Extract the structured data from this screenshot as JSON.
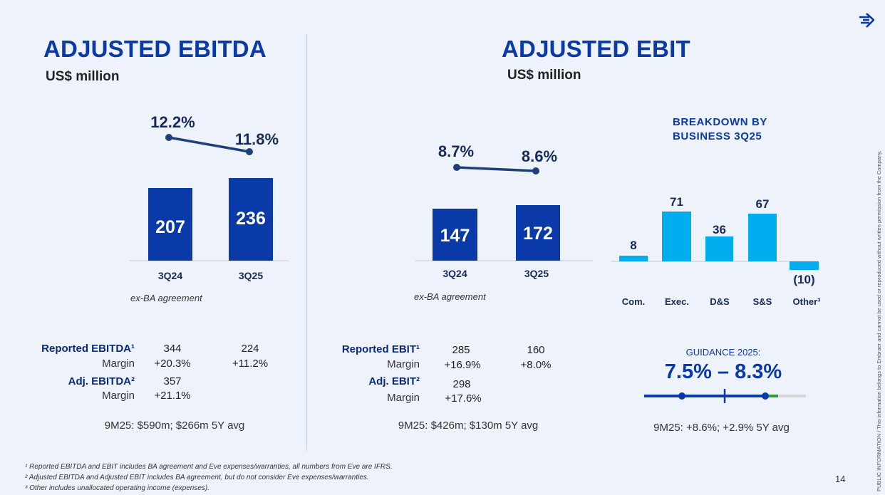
{
  "left": {
    "title": "ADJUSTED EBITDA",
    "subtitle": "US$ million",
    "note": "ex-BA agreement",
    "rows": {
      "reported_label": "Reported EBITDA¹",
      "reported_vals": [
        "344",
        "224"
      ],
      "margin1_label": "Margin",
      "margin1_vals": [
        "+20.3%",
        "+11.2%"
      ],
      "adj_label": "Adj. EBITDA²",
      "adj_val": "357",
      "margin2_label": "Margin",
      "margin2_val": "+21.1%"
    },
    "summary": "9M25: $590m; $266m 5Y avg"
  },
  "right": {
    "title": "ADJUSTED EBIT",
    "subtitle": "US$ million",
    "note": "ex-BA agreement",
    "rows": {
      "reported_label": "Reported EBIT¹",
      "reported_vals": [
        "285",
        "160"
      ],
      "margin1_label": "Margin",
      "margin1_vals": [
        "+16.9%",
        "+8.0%"
      ],
      "adj_label": "Adj. EBIT²",
      "adj_val": "298",
      "margin2_label": "Margin",
      "margin2_val": "+17.6%"
    },
    "summary": "9M25: $426m; $130m 5Y avg",
    "breakdown_title_1": "BREAKDOWN BY",
    "breakdown_title_2": "BUSINESS 3Q25",
    "guidance_label": "GUIDANCE 2025:",
    "guidance_range": "7.5% – 8.3%",
    "guidance_summary": "9M25: +8.6%; +2.9% 5Y avg"
  },
  "chart_data": [
    {
      "type": "bar",
      "title": "Adjusted EBITDA",
      "categories": [
        "3Q24",
        "3Q25"
      ],
      "values": [
        207,
        236
      ],
      "value_labels": [
        "207",
        "236"
      ],
      "line_series": {
        "name": "Margin",
        "values": [
          12.2,
          11.8
        ],
        "labels": [
          "12.2%",
          "11.8%"
        ]
      },
      "ylabel": "US$ million"
    },
    {
      "type": "bar",
      "title": "Adjusted EBIT",
      "categories": [
        "3Q24",
        "3Q25"
      ],
      "values": [
        147,
        172
      ],
      "value_labels": [
        "147",
        "172"
      ],
      "line_series": {
        "name": "Margin",
        "values": [
          8.7,
          8.6
        ],
        "labels": [
          "8.7%",
          "8.6%"
        ]
      },
      "ylabel": "US$ million"
    },
    {
      "type": "bar",
      "title": "Breakdown by Business 3Q25",
      "categories": [
        "Com.",
        "Exec.",
        "D&S",
        "S&S",
        "Other³"
      ],
      "values": [
        8,
        71,
        36,
        67,
        -10
      ],
      "value_labels": [
        "8",
        "71",
        "36",
        "67",
        "(10)"
      ]
    },
    {
      "type": "range",
      "title": "Guidance 2025",
      "range": [
        7.5,
        8.3
      ],
      "actual": 8.6
    }
  ],
  "footnotes": [
    "¹ Reported EBITDA and EBIT includes BA agreement and Eve expenses/warranties, all numbers from Eve are IFRS.",
    "² Adjusted EBITDA and Adjusted EBIT includes BA agreement, but do not consider Eve expenses/warranties.",
    "³ Other includes unallocated operating income (expenses)."
  ],
  "page_number": "14",
  "side_text": "PUBLIC INFORMATION / This information belongs to Embraer and cannot be used or reproduced without written permission from the Company.",
  "colors": {
    "navy": "#0a3aa8",
    "cyan": "#00aeef",
    "line": "#1e3f7a",
    "green": "#2e9e3a"
  }
}
